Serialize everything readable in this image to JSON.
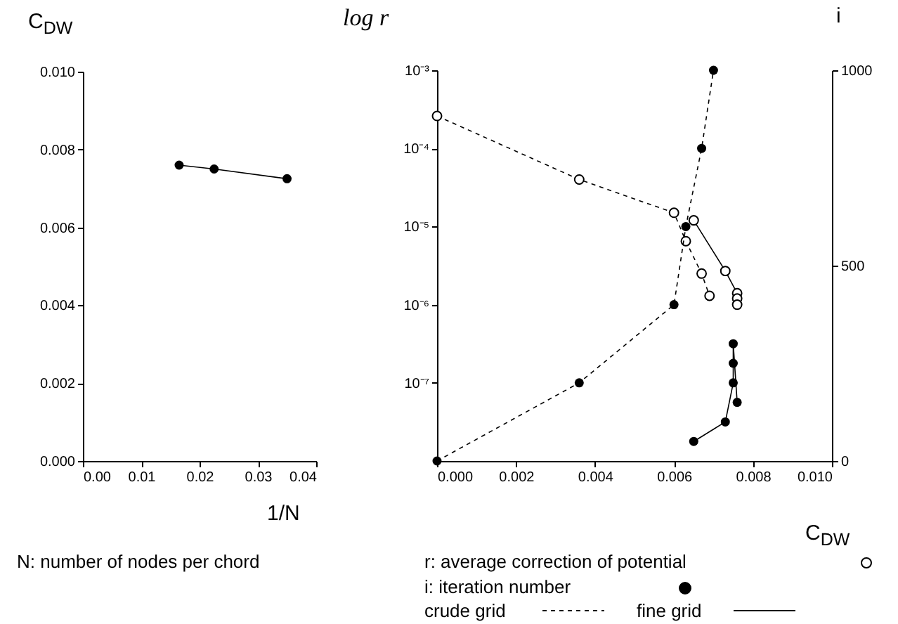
{
  "chart_data": [
    {
      "type": "line",
      "xlabel": "1/N",
      "ylabel": "C$_{DW}$",
      "x": [
        0.0165,
        0.0225,
        0.035
      ],
      "series": [
        {
          "color": "#000000",
          "values": [
            0.0076,
            0.0075,
            0.00725
          ],
          "line_style": "solid"
        }
      ],
      "xlim": [
        0,
        0.04
      ],
      "ylim": [
        0,
        0.01
      ],
      "xticks": [
        {
          "value": 0,
          "label": "0.00"
        },
        {
          "value": 0.01,
          "label": "0.01"
        },
        {
          "value": 0.02,
          "label": "0.02"
        },
        {
          "value": 0.03,
          "label": "0.03"
        },
        {
          "value": 0.04,
          "label": "0.04"
        }
      ],
      "yticks": [
        {
          "value": 0,
          "label": "0.000"
        },
        {
          "value": 0.002,
          "label": "0.002"
        },
        {
          "value": 0.004,
          "label": "0.004"
        },
        {
          "value": 0.006,
          "label": "0.006"
        },
        {
          "value": 0.008,
          "label": "0.008"
        },
        {
          "value": 0.01,
          "label": "0.010"
        }
      ],
      "marker": "circle",
      "grid": false,
      "annotations": [
        "N: number of nodes per chord"
      ]
    },
    {
      "type": "line",
      "xlabel": "C$_{DW}$",
      "ylabel": "log r",
      "y2label": "i",
      "log": "y",
      "series": [
        {
          "color": "#000000",
          "axis": "y",
          "line_style": "dashed",
          "x": [
            0,
            0.0036,
            0.006,
            0.0063,
            0.0067,
            0.0069
          ],
          "values": [
            0.00026,
            4e-05,
            1.5e-05,
            6.5e-06,
            2.5e-06,
            1.3e-06
          ]
        },
        {
          "color": "#000000",
          "axis": "y",
          "line_style": "solid",
          "x": [
            0.0065,
            0.0073,
            0.0076,
            0.0076,
            0.0076
          ],
          "values": [
            1.2e-05,
            2.7e-06,
            1.4e-06,
            1.2e-06,
            1e-06
          ]
        },
        {
          "color": "#000000",
          "axis": "y2",
          "line_style": "dashed",
          "x": [
            0,
            0.0036,
            0.006,
            0.0063,
            0.0067,
            0.007
          ],
          "values": [
            0,
            200,
            400,
            600,
            800,
            1000
          ]
        },
        {
          "color": "#000000",
          "axis": "y2",
          "line_style": "solid",
          "x": [
            0.0065,
            0.0073,
            0.0076,
            0.0075,
            0.0075,
            0.0075
          ],
          "values": [
            50,
            100,
            150,
            200,
            250,
            300
          ]
        }
      ],
      "xlim": [
        0,
        0.01
      ],
      "ylim": [
        1e-08,
        0.001
      ],
      "y2lim": [
        0,
        1000
      ],
      "xticks": [
        {
          "value": 0,
          "label": "0.000"
        },
        {
          "value": 0.002,
          "label": "0.002"
        },
        {
          "value": 0.004,
          "label": "0.004"
        },
        {
          "value": 0.006,
          "label": "0.006"
        },
        {
          "value": 0.008,
          "label": "0.008"
        },
        {
          "value": 0.01,
          "label": "0.010"
        }
      ],
      "yticks": [
        {
          "value": 1e-07,
          "label": "10⁻⁷"
        },
        {
          "value": 1e-06,
          "label": "10⁻⁶"
        },
        {
          "value": 1e-05,
          "label": "10⁻⁵"
        },
        {
          "value": 0.0001,
          "label": "10⁻⁴"
        },
        {
          "value": 0.001,
          "label": "10⁻³"
        }
      ],
      "y2ticks": [
        0,
        500,
        1000
      ],
      "marker": "circle",
      "grid": false,
      "annotations": [
        "r: average correction of potential",
        "i: iteration number",
        "crude grid",
        "fine grid"
      ]
    }
  ]
}
